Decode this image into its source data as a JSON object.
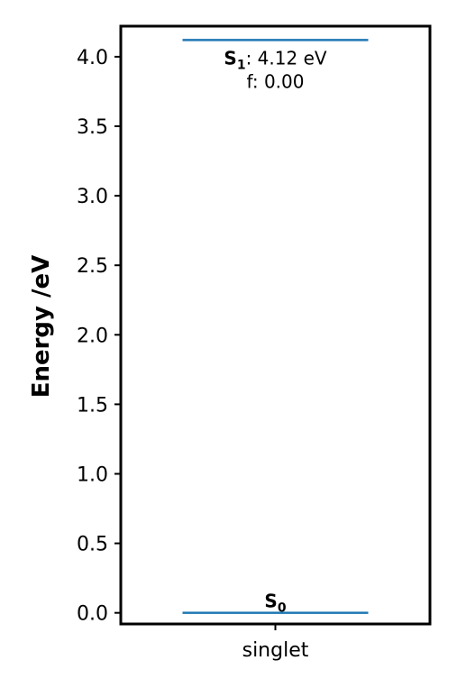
{
  "chart_data": {
    "type": "energy-level-diagram",
    "ylabel": "Energy /eV",
    "ylim": [
      -0.08,
      4.22
    ],
    "yticks": [
      {
        "value": 0.0,
        "label": "0.0"
      },
      {
        "value": 0.5,
        "label": "0.5"
      },
      {
        "value": 1.0,
        "label": "1.0"
      },
      {
        "value": 1.5,
        "label": "1.5"
      },
      {
        "value": 2.0,
        "label": "2.0"
      },
      {
        "value": 2.5,
        "label": "2.5"
      },
      {
        "value": 3.0,
        "label": "3.0"
      },
      {
        "value": 3.5,
        "label": "3.5"
      },
      {
        "value": 4.0,
        "label": "4.0"
      }
    ],
    "categories": [
      "singlet"
    ],
    "levels": [
      {
        "category": "singlet",
        "state": "S",
        "index": "0",
        "energy": 0.0,
        "energy_label": "",
        "osc_label": ""
      },
      {
        "category": "singlet",
        "state": "S",
        "index": "1",
        "energy": 4.12,
        "energy_label": ": 4.12 eV",
        "osc_label": "f: 0.00"
      }
    ],
    "line_color": "#1f77b4",
    "grid": false,
    "legend": "none"
  }
}
